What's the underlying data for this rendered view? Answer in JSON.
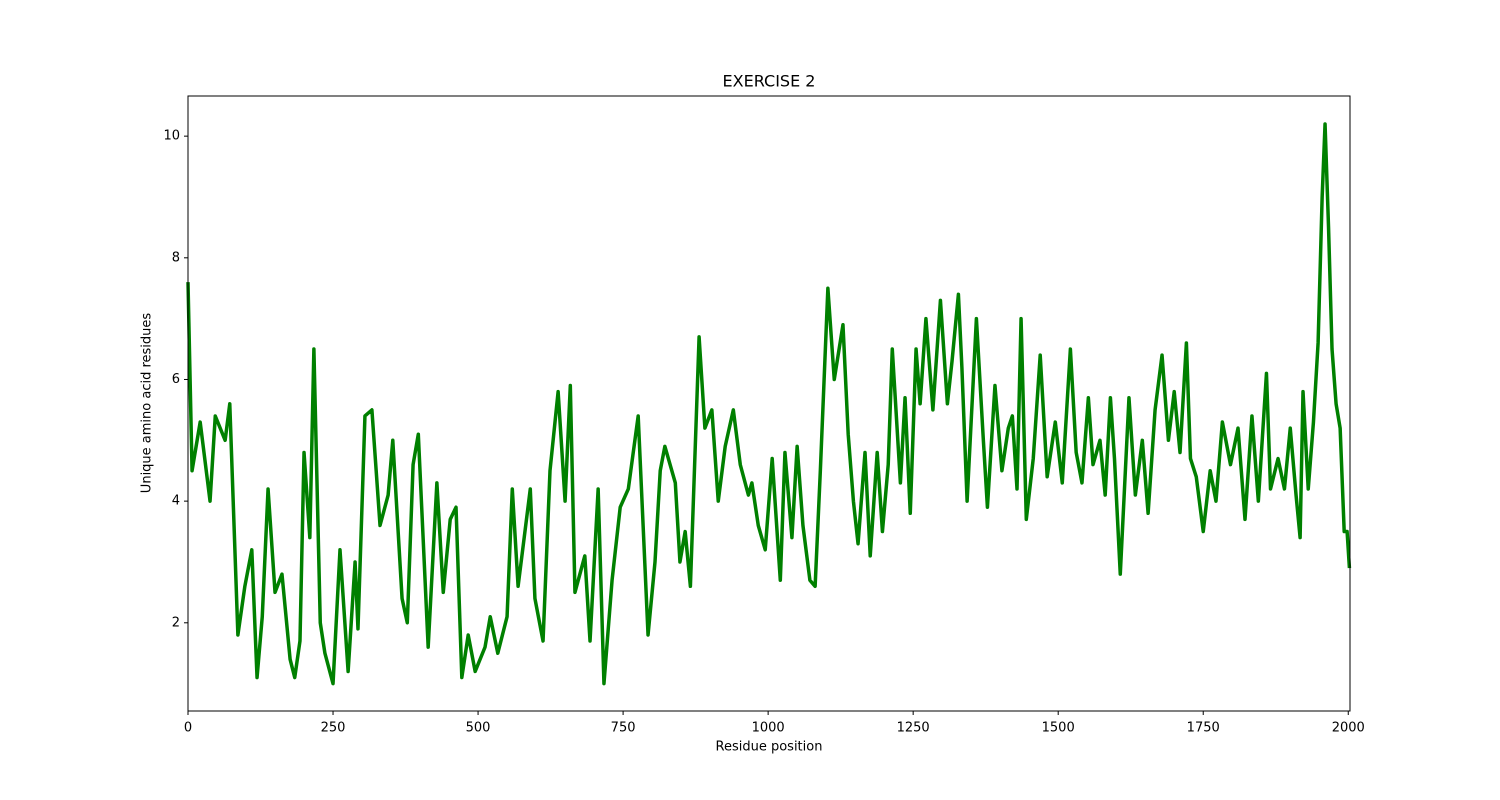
{
  "chart_data": {
    "type": "line",
    "title": "EXERCISE 2",
    "x_label": "Residue position",
    "y_label": "Unique amino acid residues",
    "color": "#008000",
    "grid": false,
    "x": [
      0,
      7,
      21,
      38,
      47,
      64,
      72,
      86,
      98,
      110,
      119,
      128,
      138,
      150,
      162,
      176,
      184,
      193,
      200,
      210,
      217,
      228,
      236,
      250,
      262,
      276,
      288,
      293,
      305,
      317,
      331,
      345,
      353,
      369,
      378,
      388,
      397,
      414,
      429,
      440,
      452,
      462,
      472,
      483,
      495,
      512,
      521,
      534,
      550,
      559,
      569,
      590,
      598,
      612,
      624,
      638,
      650,
      659,
      667,
      684,
      693,
      707,
      717,
      731,
      745,
      759,
      776,
      793,
      805,
      814,
      822,
      840,
      848,
      857,
      866,
      881,
      891,
      903,
      914,
      926,
      940,
      952,
      966,
      972,
      983,
      995,
      1007,
      1021,
      1029,
      1041,
      1050,
      1060,
      1072,
      1081,
      1090,
      1103,
      1114,
      1129,
      1138,
      1147,
      1155,
      1167,
      1176,
      1188,
      1197,
      1207,
      1214,
      1228,
      1236,
      1245,
      1255,
      1262,
      1272,
      1284,
      1297,
      1309,
      1317,
      1328,
      1334,
      1343,
      1359,
      1371,
      1378,
      1391,
      1403,
      1414,
      1421,
      1429,
      1436,
      1445,
      1457,
      1469,
      1481,
      1495,
      1507,
      1521,
      1531,
      1541,
      1552,
      1560,
      1572,
      1581,
      1590,
      1597,
      1607,
      1622,
      1633,
      1645,
      1655,
      1667,
      1679,
      1690,
      1700,
      1710,
      1721,
      1728,
      1738,
      1750,
      1762,
      1772,
      1783,
      1797,
      1810,
      1822,
      1834,
      1845,
      1859,
      1866,
      1879,
      1890,
      1900,
      1910,
      1917,
      1922,
      1931,
      1940,
      1948,
      1955,
      1960,
      1966,
      1972,
      1979,
      1986,
      1993,
      1998,
      2002
    ],
    "values": [
      7.6,
      4.5,
      5.3,
      4.0,
      5.4,
      5.0,
      5.6,
      1.8,
      2.6,
      3.2,
      1.1,
      2.1,
      4.2,
      2.5,
      2.8,
      1.4,
      1.1,
      1.7,
      4.8,
      3.4,
      6.5,
      2.0,
      1.5,
      1.0,
      3.2,
      1.2,
      3.0,
      1.9,
      5.4,
      5.5,
      3.6,
      4.1,
      5.0,
      2.4,
      2.0,
      4.6,
      5.1,
      1.6,
      4.3,
      2.5,
      3.7,
      3.9,
      1.1,
      1.8,
      1.2,
      1.6,
      2.1,
      1.5,
      2.1,
      4.2,
      2.6,
      4.2,
      2.4,
      1.7,
      4.5,
      5.8,
      4.0,
      5.9,
      2.5,
      3.1,
      1.7,
      4.2,
      1.0,
      2.7,
      3.9,
      4.2,
      5.4,
      1.8,
      3.0,
      4.5,
      4.9,
      4.3,
      3.0,
      3.5,
      2.6,
      6.7,
      5.2,
      5.5,
      4.0,
      4.9,
      5.5,
      4.6,
      4.1,
      4.3,
      3.6,
      3.2,
      4.7,
      2.7,
      4.8,
      3.4,
      4.9,
      3.6,
      2.7,
      2.6,
      4.5,
      7.5,
      6.0,
      6.9,
      5.1,
      4.0,
      3.3,
      4.8,
      3.1,
      4.8,
      3.5,
      4.6,
      6.5,
      4.3,
      5.7,
      3.8,
      6.5,
      5.6,
      7.0,
      5.5,
      7.3,
      5.6,
      6.3,
      7.4,
      6.2,
      4.0,
      7.0,
      5.0,
      3.9,
      5.9,
      4.5,
      5.2,
      5.4,
      4.2,
      7.0,
      3.7,
      4.7,
      6.4,
      4.4,
      5.3,
      4.3,
      6.5,
      4.8,
      4.3,
      5.7,
      4.6,
      5.0,
      4.1,
      5.7,
      4.7,
      2.8,
      5.7,
      4.1,
      5.0,
      3.8,
      5.5,
      6.4,
      5.0,
      5.8,
      4.8,
      6.6,
      4.7,
      4.4,
      3.5,
      4.5,
      4.0,
      5.3,
      4.6,
      5.2,
      3.7,
      5.4,
      4.0,
      6.1,
      4.2,
      4.7,
      4.2,
      5.2,
      4.1,
      3.4,
      5.8,
      4.2,
      5.3,
      6.6,
      9.0,
      10.2,
      8.5,
      6.5,
      5.6,
      5.2,
      3.5,
      3.5,
      2.9
    ],
    "xlim": [
      0,
      2003
    ],
    "ylim": [
      0.55,
      10.66
    ],
    "xticks": [
      0,
      250,
      500,
      750,
      1000,
      1250,
      1500,
      1750,
      2000
    ],
    "yticks": [
      2,
      4,
      6,
      8,
      10
    ]
  }
}
